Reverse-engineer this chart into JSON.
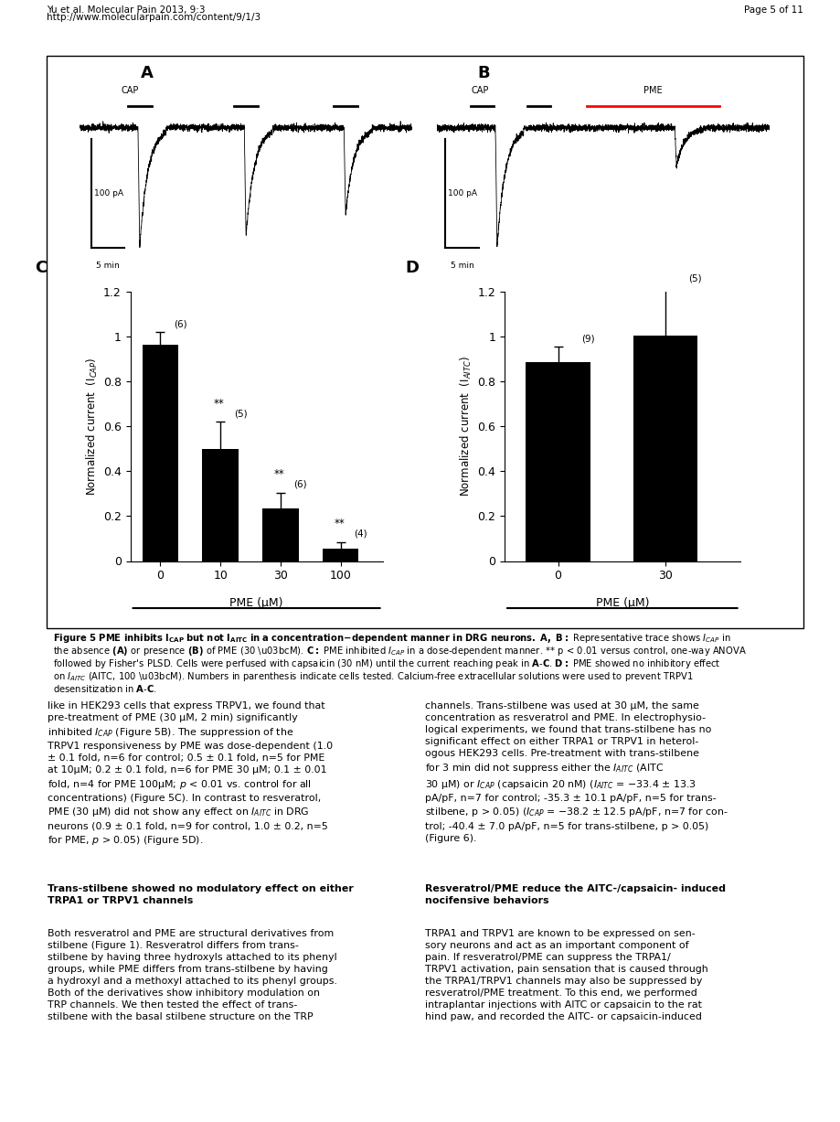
{
  "title_header": "Yu et al. Molecular Pain 2013, 9:3",
  "url_header": "http://www.molecularpain.com/content/9/1/3",
  "page_header": "Page 5 of 11",
  "panel_C": {
    "bars": [
      0.965,
      0.5,
      0.235,
      0.055
    ],
    "errors": [
      0.055,
      0.12,
      0.07,
      0.03
    ],
    "x_labels": [
      "0",
      "10",
      "30",
      "100"
    ],
    "n_labels": [
      "(6)",
      "(5)",
      "(6)",
      "(4)"
    ],
    "sig_labels": [
      "",
      "**",
      "**",
      "**"
    ],
    "xlabel": "PME (μM)",
    "ylabel_text": "Normalized current  (I$_{CAP}$)",
    "ylim": [
      0,
      1.2
    ],
    "yticks": [
      0,
      0.2,
      0.4,
      0.6,
      0.8,
      1.0,
      1.2
    ],
    "bar_color": "#000000",
    "label": "C"
  },
  "panel_D": {
    "bars": [
      0.885,
      1.005
    ],
    "errors": [
      0.07,
      0.22
    ],
    "x_labels": [
      "0",
      "30"
    ],
    "n_labels": [
      "(9)",
      "(5)"
    ],
    "sig_labels": [
      "",
      ""
    ],
    "xlabel": "PME (μM)",
    "ylabel_text": "Normalized current  (I$_{AITC}$)",
    "ylim": [
      0,
      1.2
    ],
    "yticks": [
      0,
      0.2,
      0.4,
      0.6,
      0.8,
      1.0,
      1.2
    ],
    "bar_color": "#000000",
    "label": "D"
  },
  "bg_color": "#ffffff"
}
